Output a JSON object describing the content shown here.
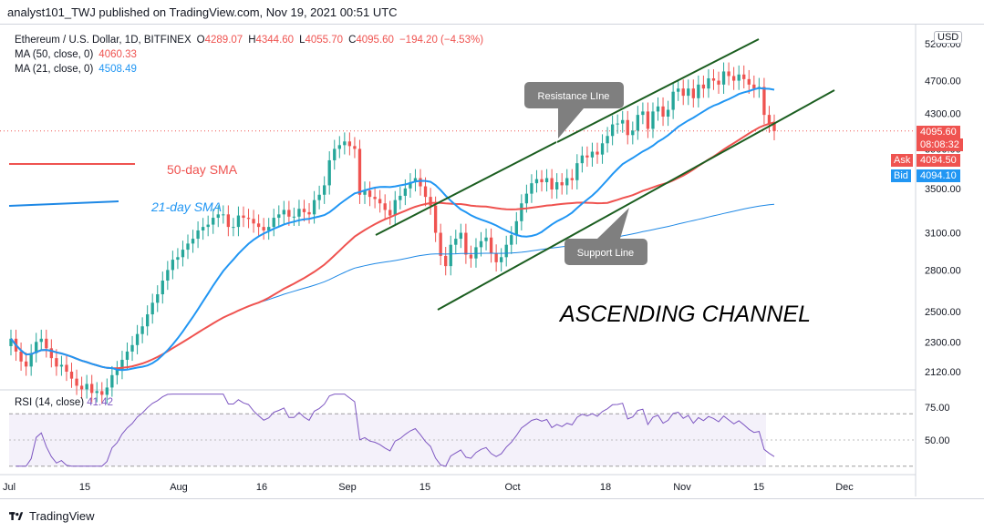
{
  "header": {
    "published_line": "analyst101_TWJ published on TradingView.com, Nov 19, 2021 00:51 UTC"
  },
  "legend": {
    "symbol": "Ethereum / U.S. Dollar, 1D, BITFINEX",
    "o_key": "O",
    "o_val": "4289.07",
    "h_key": "H",
    "h_val": "4344.60",
    "l_key": "L",
    "l_val": "4055.70",
    "c_key": "C",
    "c_val": "4095.60",
    "change": "−194.20 (−4.53%)",
    "ma50_label": "MA (50, close, 0)",
    "ma50_val": "4060.33",
    "ma21_label": "MA (21, close, 0)",
    "ma21_val": "4508.49"
  },
  "rsi": {
    "label": "RSI (14, close)",
    "value": "41.42"
  },
  "currency": "USD",
  "price_axis": {
    "last_price": "4095.60",
    "countdown": "08:08:32",
    "ask_label": "Ask",
    "ask_value": "4094.50",
    "bid_label": "Bid",
    "bid_value": "4094.10"
  },
  "annotations": {
    "sma50": "50-day SMA",
    "sma21": "21-day SMA",
    "resistance": "Resistance LIne",
    "support": "Support Line",
    "channel": "ASCENDING CHANNEL"
  },
  "footer": {
    "brand": "TradingView"
  },
  "colors": {
    "up": "#26a69a",
    "down": "#ef5350",
    "ma50": "#ef5350",
    "ma21": "#2196f3",
    "ma200": "#1e88e5",
    "rsi": "#7e57c2",
    "channel": "#1b5e20",
    "callout": "#7f7f7f"
  },
  "chart_data": [
    {
      "type": "candlestick",
      "title": "Ethereum / U.S. Dollar, 1D, BITFINEX",
      "x_ticks": [
        "Jul",
        "15",
        "Aug",
        "16",
        "Sep",
        "15",
        "Oct",
        "18",
        "Nov",
        "15",
        "Dec"
      ],
      "y_ticks": [
        2120,
        2300,
        2500,
        2800,
        3100,
        3500,
        3900,
        4300,
        4700,
        5200
      ],
      "y_tick_labels": [
        "2120.00",
        "2300.00",
        "2500.00",
        "2800.00",
        "3100.00",
        "3500.00",
        "3900.00",
        "4300.00",
        "4700.00",
        "5200.00"
      ],
      "ylim": [
        2000,
        5400
      ],
      "scale": "log",
      "series": [
        {
          "name": "MA (50, close, 0)",
          "last": 4060.33
        },
        {
          "name": "MA (21, close, 0)",
          "last": 4508.49
        }
      ],
      "last_close": 4095.6
    },
    {
      "type": "line",
      "title": "RSI (14, close)",
      "y_ticks": [
        50,
        75
      ],
      "y_tick_labels": [
        "50.00",
        "75.00"
      ],
      "ylim": [
        25,
        85
      ],
      "bands": [
        30,
        70
      ],
      "last": 41.42
    }
  ]
}
